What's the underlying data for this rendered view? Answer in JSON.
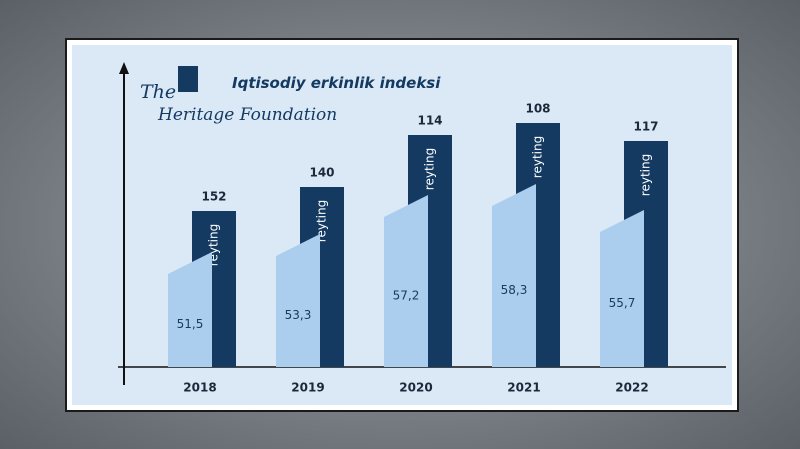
{
  "chart_data": {
    "type": "bar",
    "title": "Iqtisodiy erkinlik indeksi",
    "logo": [
      "The",
      "Heritage Foundation"
    ],
    "bar_label": "reyting",
    "categories": [
      "2018",
      "2019",
      "2020",
      "2021",
      "2022"
    ],
    "ylim": [
      40,
      70
    ],
    "y2lim": [
      230,
      80
    ],
    "series": [
      {
        "color": "#abcdee",
        "values": [
          51.5,
          53.3,
          57.2,
          58.3,
          55.7
        ],
        "value_labels": [
          "51,5",
          "53,3",
          "57,2",
          "58,3",
          "55,7"
        ]
      },
      {
        "color": "#143a62",
        "axis": "y2",
        "values": [
          152,
          140,
          114,
          108,
          117
        ]
      }
    ]
  }
}
